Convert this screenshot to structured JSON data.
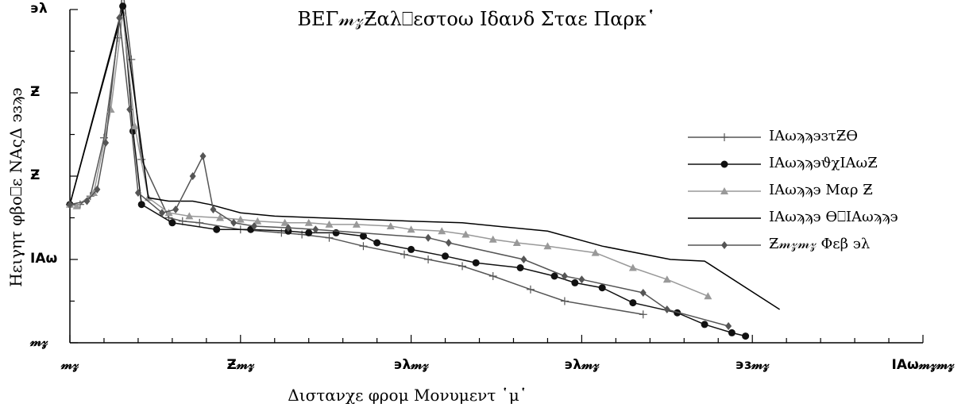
{
  "chart_data": {
    "type": "line",
    "title": "ΒΕΓ𝓂𝓏Ƶαλ⎕εστοω Ιδανδ Σταε Παρκ῾",
    "xlabel": "Διστανχε φρομ Μονυμεντ ῾μ῾",
    "ylabel": "Ηειγητ φβο⎕ε ΝΑςΔ ϶ɜϡ϶",
    "xlim": [
      0,
      2500
    ],
    "ylim": [
      0,
      200
    ],
    "x_ticks": [
      0,
      500,
      1000,
      1500,
      2000,
      2500
    ],
    "x_tick_labels": [
      "𝓂𝓏",
      "Ƶ𝓂𝓏",
      "϶λ𝓂𝓏",
      "϶λ𝓂𝓏",
      "϶ɜ𝓂𝓏",
      "ΙΑω𝓂𝓏𝓂𝓏"
    ],
    "y_ticks": [
      0,
      50,
      100,
      150,
      200
    ],
    "y_tick_labels": [
      "𝓂𝓏",
      "ΙΑω",
      "Ƶ",
      "Ƶ",
      "϶λ"
    ],
    "legend_position": "right",
    "grid": false,
    "series": [
      {
        "name": "ΙΑωϡϡ϶ɜτƵϴ",
        "color": "#555555",
        "marker": "plus",
        "x": [
          0,
          30,
          60,
          100,
          140,
          155,
          180,
          210,
          290,
          330,
          380,
          500,
          620,
          680,
          760,
          860,
          980,
          1050,
          1150,
          1240,
          1350,
          1450,
          1680
        ],
        "y": [
          83,
          83,
          88,
          123,
          183,
          212,
          170,
          110,
          75,
          73,
          72,
          68,
          66,
          65,
          63,
          58,
          53,
          50,
          46,
          40,
          32,
          25,
          17
        ]
      },
      {
        "name": "ΙΑωϡϡ϶ϑχΙΑωƵ",
        "color": "#111111",
        "marker": "circle",
        "x": [
          0,
          155,
          185,
          210,
          300,
          430,
          530,
          640,
          700,
          780,
          860,
          900,
          1000,
          1100,
          1190,
          1320,
          1420,
          1480,
          1560,
          1650,
          1780,
          1860,
          1940,
          1980
        ],
        "y": [
          83,
          202,
          127,
          83,
          72,
          68,
          68,
          67,
          66,
          66,
          64,
          60,
          56,
          52,
          48,
          45,
          40,
          36,
          33,
          24,
          18,
          11,
          6,
          4
        ]
      },
      {
        "name": "ΙΑωϡϡ϶ Μαρ Ƶ",
        "color": "#999999",
        "marker": "triangle",
        "x": [
          0,
          20,
          70,
          120,
          155,
          190,
          230,
          290,
          350,
          440,
          500,
          550,
          630,
          700,
          760,
          840,
          940,
          1000,
          1090,
          1160,
          1240,
          1310,
          1400,
          1540,
          1650,
          1750,
          1870
        ],
        "y": [
          83,
          82,
          90,
          140,
          198,
          130,
          87,
          78,
          76,
          75,
          74,
          73,
          72,
          72,
          71,
          71,
          70,
          68,
          67,
          65,
          62,
          60,
          58,
          54,
          45,
          38,
          28
        ]
      },
      {
        "name": "ΙΑωϡϡ϶ ϴ⎕ΙΑωϡϡ϶",
        "color": "#000000",
        "marker": "none",
        "x": [
          0,
          155,
          230,
          290,
          360,
          410,
          500,
          600,
          1000,
          1150,
          1400,
          1560,
          1760,
          1860,
          2080
        ],
        "y": [
          83,
          200,
          87,
          85,
          85,
          83,
          78,
          76,
          73,
          72,
          67,
          58,
          50,
          49,
          20
        ]
      },
      {
        "name": "Ƶ𝓂𝓏𝓂𝓏 Φεβ ϶λ",
        "color": "#555555",
        "marker": "diamond",
        "x": [
          0,
          50,
          80,
          105,
          145,
          175,
          200,
          270,
          310,
          360,
          390,
          420,
          480,
          540,
          640,
          720,
          1050,
          1110,
          1330,
          1450,
          1500,
          1680,
          1750,
          1930
        ],
        "y": [
          83,
          85,
          92,
          120,
          195,
          140,
          90,
          78,
          80,
          100,
          112,
          80,
          72,
          70,
          69,
          68,
          63,
          60,
          50,
          40,
          38,
          30,
          20,
          10
        ]
      }
    ]
  }
}
